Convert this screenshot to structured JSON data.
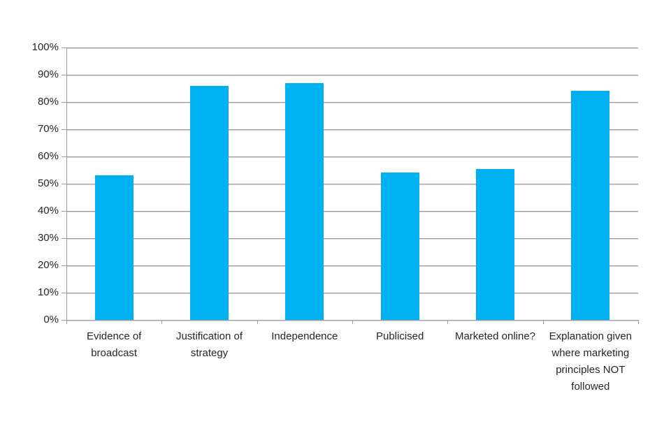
{
  "chart_data": {
    "type": "bar",
    "title": "",
    "xlabel": "",
    "ylabel": "",
    "categories": [
      "Evidence of broadcast",
      "Justification of strategy",
      "Independence",
      "Publicised",
      "Marketed online?",
      "Explanation given where marketing principles NOT followed"
    ],
    "values": [
      53,
      86,
      87,
      54,
      55.5,
      84
    ],
    "ylim": [
      0,
      100
    ],
    "y_tick_step": 10,
    "y_tick_labels": [
      "0%",
      "10%",
      "20%",
      "30%",
      "40%",
      "50%",
      "60%",
      "70%",
      "80%",
      "90%",
      "100%"
    ],
    "grid": true,
    "legend": false,
    "colors": {
      "bar": "#00b0f0",
      "gridline": "#9c9c9c",
      "gridline_shadow": "#d6d6d6",
      "axis": "#9c9c9c",
      "text": "#262626",
      "background": "#ffffff"
    }
  }
}
